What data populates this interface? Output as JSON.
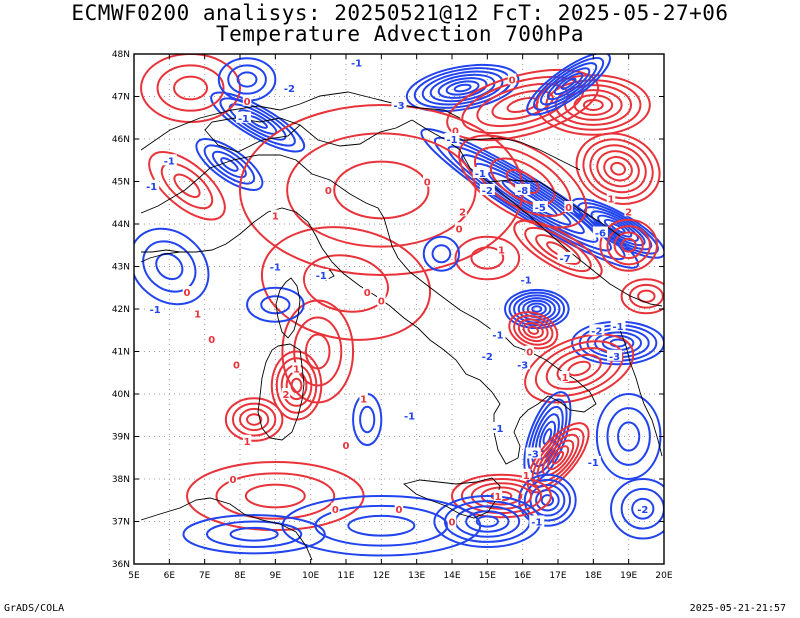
{
  "header": {
    "title_line1": "ECMWF0200 analisys: 20250521@12 FcT: 2025-05-27+06",
    "title_line2": "Temperature Advection 700hPa"
  },
  "map": {
    "lon_labels": [
      "5E",
      "6E",
      "7E",
      "8E",
      "9E",
      "10E",
      "11E",
      "12E",
      "13E",
      "14E",
      "15E",
      "16E",
      "17E",
      "18E",
      "19E",
      "20E"
    ],
    "lat_labels": [
      "48N",
      "47N",
      "46N",
      "45N",
      "44N",
      "43N",
      "42N",
      "41N",
      "40N",
      "39N",
      "38N",
      "37N",
      "36N"
    ],
    "lon_range": [
      5,
      20
    ],
    "lat_range": [
      36,
      48
    ],
    "colors": {
      "positive": "#e8333a",
      "negative": "#2244ee",
      "coast": "#000000",
      "grid": "#a0a0a0"
    },
    "contour_labels": [
      {
        "text": "-1",
        "lon": 11.3,
        "lat": 47.8,
        "sign": "neg"
      },
      {
        "text": "-2",
        "lon": 9.4,
        "lat": 47.2,
        "sign": "neg"
      },
      {
        "text": "-3",
        "lon": 12.5,
        "lat": 46.8,
        "sign": "neg"
      },
      {
        "text": "-1",
        "lon": 8.1,
        "lat": 46.5,
        "sign": "neg"
      },
      {
        "text": "0",
        "lon": 8.2,
        "lat": 46.9,
        "sign": "pos"
      },
      {
        "text": "-1",
        "lon": 6.0,
        "lat": 45.5,
        "sign": "neg"
      },
      {
        "text": "-1",
        "lon": 5.5,
        "lat": 44.9,
        "sign": "neg"
      },
      {
        "text": "0",
        "lon": 10.5,
        "lat": 44.8,
        "sign": "pos"
      },
      {
        "text": "1",
        "lon": 9.0,
        "lat": 44.2,
        "sign": "pos"
      },
      {
        "text": "-1",
        "lon": 9.0,
        "lat": 43.0,
        "sign": "neg"
      },
      {
        "text": "-1",
        "lon": 10.3,
        "lat": 42.8,
        "sign": "neg"
      },
      {
        "text": "0",
        "lon": 11.6,
        "lat": 42.4,
        "sign": "pos"
      },
      {
        "text": "0",
        "lon": 12.0,
        "lat": 42.2,
        "sign": "pos"
      },
      {
        "text": "-1",
        "lon": 5.6,
        "lat": 42.0,
        "sign": "neg"
      },
      {
        "text": "1",
        "lon": 6.8,
        "lat": 41.9,
        "sign": "pos"
      },
      {
        "text": "0",
        "lon": 6.5,
        "lat": 42.4,
        "sign": "pos"
      },
      {
        "text": "0",
        "lon": 7.2,
        "lat": 41.3,
        "sign": "pos"
      },
      {
        "text": "0",
        "lon": 7.9,
        "lat": 40.7,
        "sign": "pos"
      },
      {
        "text": "1",
        "lon": 9.6,
        "lat": 40.6,
        "sign": "pos"
      },
      {
        "text": "2",
        "lon": 9.3,
        "lat": 40.0,
        "sign": "pos"
      },
      {
        "text": "1",
        "lon": 11.5,
        "lat": 39.9,
        "sign": "pos"
      },
      {
        "text": "-1",
        "lon": 12.8,
        "lat": 39.5,
        "sign": "neg"
      },
      {
        "text": "1",
        "lon": 8.2,
        "lat": 38.9,
        "sign": "pos"
      },
      {
        "text": "0",
        "lon": 11.0,
        "lat": 38.8,
        "sign": "pos"
      },
      {
        "text": "0",
        "lon": 7.8,
        "lat": 38.0,
        "sign": "pos"
      },
      {
        "text": "0",
        "lon": 10.7,
        "lat": 37.3,
        "sign": "pos"
      },
      {
        "text": "0",
        "lon": 12.5,
        "lat": 37.3,
        "sign": "pos"
      },
      {
        "text": "0",
        "lon": 14.0,
        "lat": 37.0,
        "sign": "pos"
      },
      {
        "text": "0",
        "lon": 15.7,
        "lat": 47.4,
        "sign": "pos"
      },
      {
        "text": "0",
        "lon": 14.1,
        "lat": 46.2,
        "sign": "pos"
      },
      {
        "text": "-1",
        "lon": 14.0,
        "lat": 46.0,
        "sign": "neg"
      },
      {
        "text": "-1",
        "lon": 14.8,
        "lat": 45.2,
        "sign": "neg"
      },
      {
        "text": "-2",
        "lon": 15.0,
        "lat": 44.8,
        "sign": "neg"
      },
      {
        "text": "0",
        "lon": 13.3,
        "lat": 45.0,
        "sign": "pos"
      },
      {
        "text": "2",
        "lon": 14.3,
        "lat": 44.3,
        "sign": "pos"
      },
      {
        "text": "0",
        "lon": 14.2,
        "lat": 43.9,
        "sign": "pos"
      },
      {
        "text": "1",
        "lon": 15.4,
        "lat": 43.4,
        "sign": "pos"
      },
      {
        "text": "-1",
        "lon": 16.1,
        "lat": 42.7,
        "sign": "neg"
      },
      {
        "text": "-5",
        "lon": 16.5,
        "lat": 44.4,
        "sign": "neg"
      },
      {
        "text": "-6",
        "lon": 18.2,
        "lat": 43.8,
        "sign": "neg"
      },
      {
        "text": "-7",
        "lon": 17.2,
        "lat": 43.2,
        "sign": "neg"
      },
      {
        "text": "-8",
        "lon": 16.0,
        "lat": 44.8,
        "sign": "neg"
      },
      {
        "text": "0",
        "lon": 17.3,
        "lat": 44.4,
        "sign": "pos"
      },
      {
        "text": "1",
        "lon": 18.5,
        "lat": 44.6,
        "sign": "pos"
      },
      {
        "text": "2",
        "lon": 19.0,
        "lat": 44.3,
        "sign": "pos"
      },
      {
        "text": "-2",
        "lon": 18.1,
        "lat": 41.5,
        "sign": "neg"
      },
      {
        "text": "-1",
        "lon": 18.7,
        "lat": 41.6,
        "sign": "neg"
      },
      {
        "text": "-3",
        "lon": 18.6,
        "lat": 40.9,
        "sign": "neg"
      },
      {
        "text": "-1",
        "lon": 15.3,
        "lat": 41.4,
        "sign": "neg"
      },
      {
        "text": "-2",
        "lon": 15.0,
        "lat": 40.9,
        "sign": "neg"
      },
      {
        "text": "-3",
        "lon": 16.0,
        "lat": 40.7,
        "sign": "neg"
      },
      {
        "text": "0",
        "lon": 16.2,
        "lat": 41.0,
        "sign": "pos"
      },
      {
        "text": "1",
        "lon": 17.2,
        "lat": 40.4,
        "sign": "pos"
      },
      {
        "text": "-1",
        "lon": 15.3,
        "lat": 39.2,
        "sign": "neg"
      },
      {
        "text": "-3",
        "lon": 16.3,
        "lat": 38.6,
        "sign": "neg"
      },
      {
        "text": "-1",
        "lon": 18.0,
        "lat": 38.4,
        "sign": "neg"
      },
      {
        "text": "-1",
        "lon": 16.4,
        "lat": 37.0,
        "sign": "neg"
      },
      {
        "text": "-2",
        "lon": 19.4,
        "lat": 37.3,
        "sign": "neg"
      },
      {
        "text": "1",
        "lon": 15.3,
        "lat": 37.6,
        "sign": "pos"
      },
      {
        "text": "1",
        "lon": 16.1,
        "lat": 38.1,
        "sign": "pos"
      }
    ]
  },
  "footer": {
    "left": "GrADS/COLA",
    "right": "2025-05-21-21:57"
  }
}
